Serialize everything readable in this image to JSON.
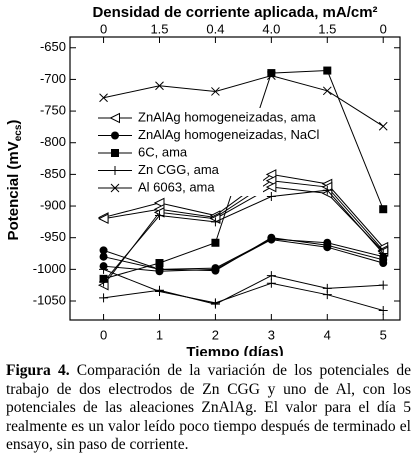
{
  "chart_data": {
    "type": "line",
    "top_axis_label": "Densidad de corriente aplicada, mA/cm²",
    "top_tick_labels": [
      "0",
      "1.5",
      "0.4",
      "4.0",
      "1.5",
      "0"
    ],
    "x_label": "Tiempo (días)",
    "y_label": [
      "Potencial (mV",
      "ecs",
      ")"
    ],
    "x": [
      0,
      1,
      2,
      3,
      4,
      5
    ],
    "xlim": [
      -0.6,
      5.3
    ],
    "xticks": [
      0,
      1,
      2,
      3,
      4,
      5
    ],
    "ylim": [
      -1080,
      -633
    ],
    "yticks": [
      -650,
      -700,
      -750,
      -800,
      -850,
      -900,
      -950,
      -1000,
      -1050
    ],
    "series": [
      {
        "name": "ZnAlAg homogeneizadas, ama",
        "marker": "triangle-left",
        "color": "#000000",
        "lines": [
          [
            -918,
            -895,
            -915,
            -850,
            -865,
            -965
          ],
          [
            -920,
            -905,
            -918,
            -860,
            -870,
            -970
          ],
          [
            -1025,
            -910,
            -920,
            -870,
            -880,
            -972
          ]
        ]
      },
      {
        "name": "ZnAlAg homogeneizadas, NaCl",
        "marker": "circle",
        "color": "#000000",
        "lines": [
          [
            -970,
            -1000,
            -998,
            -952,
            -958,
            -980
          ],
          [
            -980,
            -1000,
            -1002,
            -950,
            -962,
            -985
          ],
          [
            -995,
            -1003,
            -1000,
            -953,
            -965,
            -990
          ]
        ]
      },
      {
        "name": "6C, ama",
        "marker": "square",
        "color": "#000000",
        "lines": [
          [
            -1015,
            -990,
            -958,
            -690,
            -686,
            -905
          ]
        ]
      },
      {
        "name": "Zn CGG, ama",
        "marker": "plus",
        "color": "#000000",
        "lines": [
          [
            -1045,
            -1033,
            -1055,
            -1010,
            -1030,
            -1025
          ],
          [
            -1000,
            -1035,
            -1053,
            -1022,
            -1040,
            -1065
          ],
          [
            -1020,
            -915,
            -925,
            -885,
            -875,
            -975
          ]
        ]
      },
      {
        "name": "Al 6063, ama",
        "marker": "cross",
        "color": "#000000",
        "lines": [
          [
            -729,
            -710,
            -719,
            -694,
            -718,
            -774
          ]
        ]
      }
    ]
  },
  "caption": {
    "label": "Figura 4.",
    "text": " Comparación de la variación de los potenciales de trabajo de dos electrodos de Zn CGG y uno de Al, con los potenciales de las aleaciones ZnAlAg. El valor para el día 5 realmente es un valor leído poco tiempo después de terminado el ensayo, sin paso de corriente."
  }
}
